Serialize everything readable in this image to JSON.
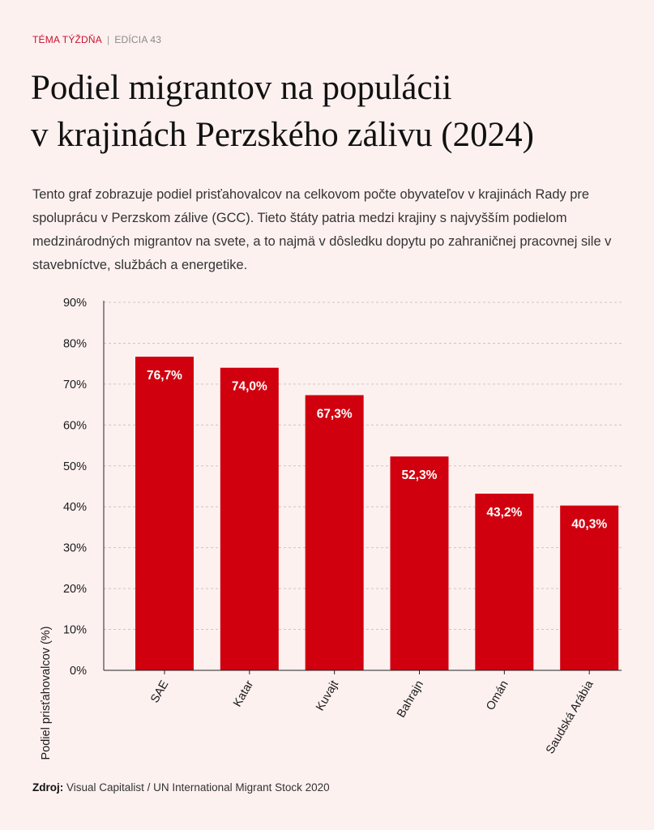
{
  "header": {
    "topic": "TÉMA TÝŽDŇA",
    "separator": "|",
    "edition": "EDÍCIA 43"
  },
  "title_lines": [
    "Podiel migrantov na populácii",
    "v krajinách Perzského zálivu (2024)"
  ],
  "description": "Tento graf zobrazuje podiel prisťahovalcov na celkovom počte obyvateľov v krajinách Rady pre spoluprácu v Perzskom zálive (GCC). Tieto štáty patria medzi krajiny s najvyšším podielom medzinárodných migrantov na svete, a to najmä v dôsledku dopytu po zahraničnej pracovnej sile v stavebníctve, službách a energetike.",
  "source": {
    "label": "Zdroj:",
    "text": "Visual Capitalist / UN International Migrant Stock 2020"
  },
  "colors": {
    "bar": "#d0000f",
    "accent": "#c8102e",
    "background": "#fdf1f0"
  },
  "chart_data": {
    "type": "bar",
    "categories": [
      "SAE",
      "Katar",
      "Kuvajt",
      "Bahrajn",
      "Omán",
      "Saudská Arábia"
    ],
    "values": [
      76.7,
      74.0,
      67.3,
      52.3,
      43.2,
      40.3
    ],
    "value_labels": [
      "76,7%",
      "74,0%",
      "67,3%",
      "52,3%",
      "43,2%",
      "40,3%"
    ],
    "title": "Podiel migrantov na populácii v krajinách Perzského zálivu (2024)",
    "xlabel": "",
    "ylabel": "Podiel prisťahovalcov (%)",
    "ylim": [
      0,
      90
    ],
    "yticks": [
      0,
      10,
      20,
      30,
      40,
      50,
      60,
      70,
      80,
      90
    ],
    "ytick_labels": [
      "0%",
      "10%",
      "20%",
      "30%",
      "40%",
      "50%",
      "60%",
      "70%",
      "80%",
      "90%"
    ],
    "grid": true,
    "legend": "none"
  }
}
